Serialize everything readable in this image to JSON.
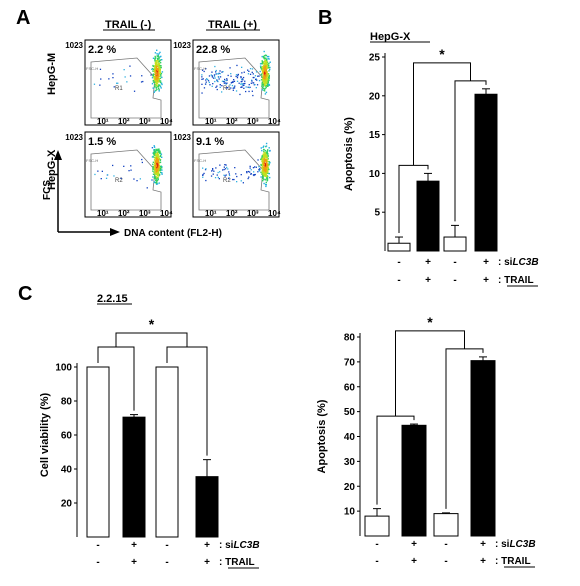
{
  "panels": {
    "A": "A",
    "B": "B",
    "C": "C"
  },
  "flow": {
    "col_headers": [
      "TRAIL (-)",
      "TRAIL (+)"
    ],
    "row_labels": [
      "HepG-M",
      "HepG-X"
    ],
    "percentages": [
      [
        "2.2 %",
        "22.8 %"
      ],
      [
        "1.5 %",
        "9.1 %"
      ]
    ],
    "gate_labels": [
      [
        "R1",
        "R1"
      ],
      [
        "R2",
        "R2"
      ]
    ],
    "x_ticks": [
      "10¹",
      "10²",
      "10³",
      "10⁴"
    ],
    "y_top": "1023",
    "y_axis_small": "FSC-H",
    "y_axis_label": "FCS",
    "x_axis_label": "DNA content (FL2-H)"
  },
  "condition_labels": {
    "row1": [
      "-",
      "+",
      "-",
      "+"
    ],
    "row1_label": ": si",
    "row1_gene": "LC3B",
    "row2": [
      "-",
      "+",
      "-",
      "+"
    ],
    "row2_label": ": TRAIL"
  },
  "significance": "*",
  "chart_data": [
    {
      "type": "bar",
      "panel": "B",
      "title": "HepG-X",
      "ylabel": "Apoptosis (%)",
      "categories": [
        "si- / TRAIL-",
        "si- / TRAIL+",
        "si+ / TRAIL-",
        "si+ / TRAIL+"
      ],
      "values": [
        1.0,
        9.0,
        1.8,
        20.2
      ],
      "errors": [
        0.8,
        1.0,
        1.5,
        0.7
      ],
      "colors": [
        "#ffffff",
        "#000000",
        "#ffffff",
        "#000000"
      ],
      "ylim": [
        0,
        25
      ],
      "yticks": [
        5,
        10,
        15,
        20,
        25
      ],
      "grid": false
    },
    {
      "type": "bar",
      "panel": "C-left",
      "title": "2.2.15",
      "ylabel": "Cell viability (%)",
      "categories": [
        "si- / TRAIL-",
        "si- / TRAIL+",
        "si+ / TRAIL-",
        "si+ / TRAIL+"
      ],
      "values": [
        100,
        70.5,
        100,
        35.5
      ],
      "errors": [
        0,
        1.5,
        0,
        10
      ],
      "colors": [
        "#ffffff",
        "#000000",
        "#ffffff",
        "#000000"
      ],
      "ylim": [
        0,
        120
      ],
      "yticks": [
        20,
        40,
        60,
        80,
        100
      ],
      "grid": false
    },
    {
      "type": "bar",
      "panel": "C-right",
      "title": "",
      "ylabel": "Apoptosis (%)",
      "categories": [
        "si- / TRAIL-",
        "si- / TRAIL+",
        "si+ / TRAIL-",
        "si+ / TRAIL+"
      ],
      "values": [
        8,
        44.5,
        9,
        70.5
      ],
      "errors": [
        3,
        0.5,
        0.3,
        1.5
      ],
      "colors": [
        "#ffffff",
        "#000000",
        "#ffffff",
        "#000000"
      ],
      "ylim": [
        0,
        80
      ],
      "yticks": [
        10,
        20,
        30,
        40,
        50,
        60,
        70,
        80
      ],
      "grid": false
    }
  ]
}
